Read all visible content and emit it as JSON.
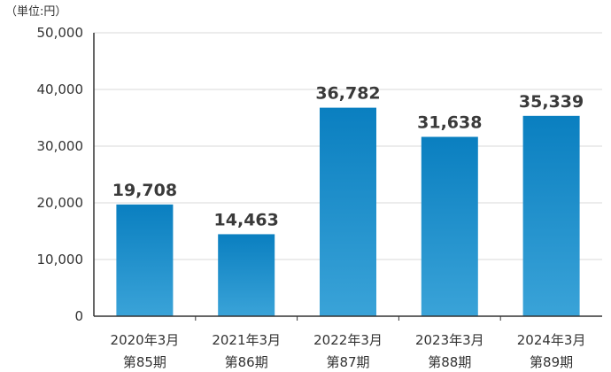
{
  "unit_note": "（単位:円）",
  "chart_data": {
    "type": "bar",
    "categories": [
      [
        "2020年3月",
        "第85期"
      ],
      [
        "2021年3月",
        "第86期"
      ],
      [
        "2022年3月",
        "第87期"
      ],
      [
        "2023年3月",
        "第88期"
      ],
      [
        "2024年3月",
        "第89期"
      ]
    ],
    "values": [
      19708,
      14463,
      36782,
      31638,
      35339
    ],
    "value_labels": [
      "19,708",
      "14,463",
      "36,782",
      "31,638",
      "35,339"
    ],
    "yticks": [
      0,
      10000,
      20000,
      30000,
      40000,
      50000
    ],
    "ytick_labels": [
      "0",
      "10,000",
      "20,000",
      "30,000",
      "40,000",
      "50,000"
    ],
    "ylim": [
      0,
      50000
    ],
    "grid": true,
    "colors": {
      "bar_top": "#0a7fc0",
      "bar_bottom": "#3aa3d8",
      "grid": "#d9d9d9",
      "axis": "#333333"
    }
  }
}
